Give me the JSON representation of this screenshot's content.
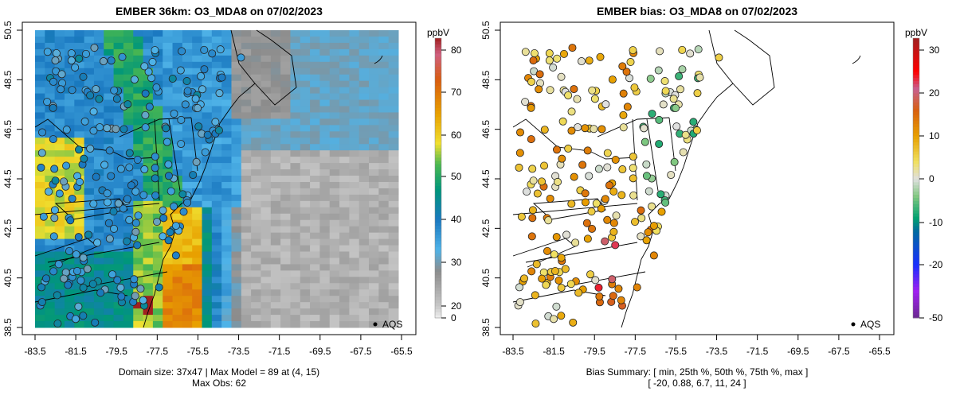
{
  "panels": [
    {
      "title": "EMBER 36km: O3_MDA8 on 07/02/2023",
      "footer": [
        "Domain size: 37x47 | Max Model = 89 at (4, 15)",
        "Max Obs: 62"
      ],
      "colorbar": {
        "unit": "ppbV",
        "ticks": [
          "80",
          "70",
          "60",
          "50",
          "40",
          "30",
          "20",
          "0"
        ]
      },
      "legend": "AQS"
    },
    {
      "title": "EMBER bias: O3_MDA8 on 07/02/2023",
      "footer": [
        "Bias Summary: [ min, 25th %, 50th %, 75th %, max ]",
        "[ -20,   0.88,   6.7,   11,   24 ]"
      ],
      "colorbar": {
        "unit": "ppbV",
        "ticks": [
          "30",
          "20",
          "10",
          "0",
          "-10",
          "-20",
          "-50"
        ]
      },
      "legend": "AQS"
    }
  ],
  "axes": {
    "x_ticks": [
      "-83.5",
      "-81.5",
      "-79.5",
      "-77.5",
      "-75.5",
      "-73.5",
      "-71.5",
      "-69.5",
      "-67.5",
      "-65.5"
    ],
    "y_ticks": [
      "50.5",
      "48.5",
      "46.5",
      "44.5",
      "42.5",
      "40.5",
      "38.5"
    ]
  },
  "chart_data": {
    "type": "heatmap",
    "variable": "O3_MDA8",
    "date": "07/02/2023",
    "grid": [
      37,
      47
    ],
    "max_model": 89,
    "max_model_cell": [
      4,
      15
    ],
    "max_obs": 62,
    "model_range_ppbV": [
      0,
      83
    ],
    "bias_range_ppbV": [
      -50,
      33
    ],
    "bias_summary": {
      "min": -20,
      "p25": 0.88,
      "p50": 6.7,
      "p75": 11,
      "max": 24
    },
    "xlim": [
      -83.5,
      -65.5
    ],
    "ylim": [
      38.5,
      50.5
    ],
    "network": "AQS"
  }
}
